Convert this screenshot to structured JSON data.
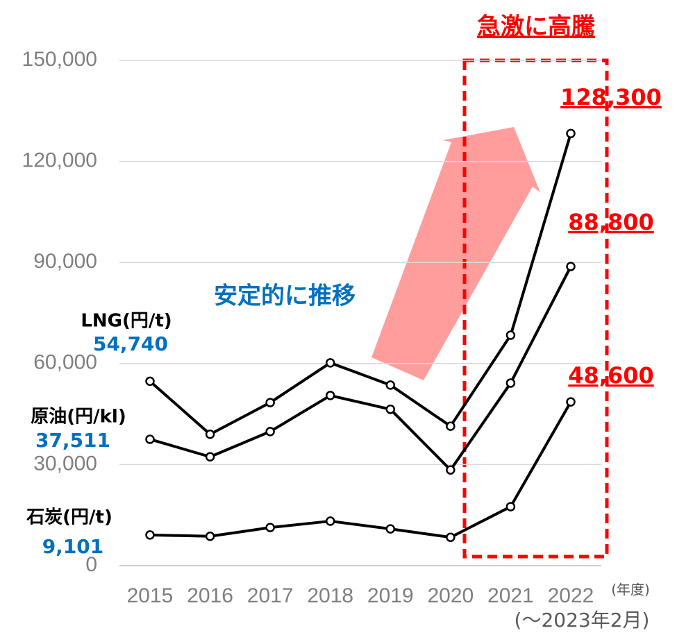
{
  "chart_data": {
    "type": "line",
    "categories": [
      "2015",
      "2016",
      "2017",
      "2018",
      "2019",
      "2020",
      "2021",
      "2022"
    ],
    "series": [
      {
        "name": "LNG(円/t)",
        "color": "#000000",
        "values": [
          54740,
          39000,
          48400,
          60200,
          53600,
          41400,
          68400,
          128300
        ],
        "value_labels": [
          "54,740",
          null,
          null,
          null,
          null,
          null,
          null,
          "128,300"
        ]
      },
      {
        "name": "原油(円/kl)",
        "color": "#000000",
        "values": [
          37511,
          32300,
          39800,
          50500,
          46400,
          28400,
          54200,
          88800
        ],
        "value_labels": [
          "37,511",
          null,
          null,
          null,
          null,
          null,
          null,
          "88,800"
        ]
      },
      {
        "name": "石炭(円/t)",
        "color": "#000000",
        "values": [
          9101,
          8700,
          11300,
          13200,
          10900,
          8400,
          17500,
          48600
        ],
        "value_labels": [
          "9,101",
          null,
          null,
          null,
          null,
          null,
          null,
          "48,600"
        ]
      }
    ],
    "ylim": [
      0,
      150000
    ],
    "yticks": [
      0,
      {
        "value": 30000,
        "label": "30,000"
      },
      {
        "value": 60000,
        "label": "60,000"
      },
      {
        "value": 90000,
        "label": "90,000"
      },
      {
        "value": 120000,
        "label": "120,000"
      },
      {
        "value": 150000,
        "label": "150,000"
      }
    ],
    "grid": true,
    "x_unit": "(年度)",
    "note": "(～2023年2月)",
    "annotations": [
      "急激に高騰",
      "安定的に推移"
    ]
  }
}
